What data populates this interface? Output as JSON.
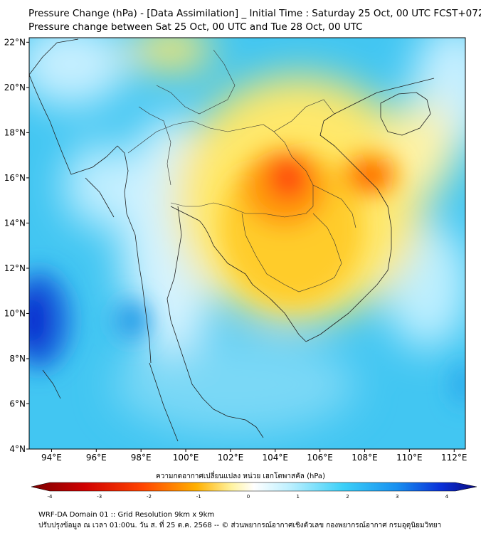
{
  "header": {
    "title": "Pressure Change (hPa) - [Data Assimilation] _ Initial Time : Saturday 25 Oct, 00 UTC FCST+072",
    "subtitle": "Pressure change between Sat 25 Oct, 00 UTC and Tue 28 Oct, 00 UTC"
  },
  "map": {
    "lon_range": [
      93,
      112.5
    ],
    "lat_range": [
      4,
      22.2
    ],
    "lon_ticks": [
      {
        "value": 94,
        "label": "94°E"
      },
      {
        "value": 96,
        "label": "96°E"
      },
      {
        "value": 98,
        "label": "98°E"
      },
      {
        "value": 100,
        "label": "100°E"
      },
      {
        "value": 102,
        "label": "102°E"
      },
      {
        "value": 104,
        "label": "104°E"
      },
      {
        "value": 106,
        "label": "106°E"
      },
      {
        "value": 108,
        "label": "108°E"
      },
      {
        "value": 110,
        "label": "110°E"
      },
      {
        "value": 112,
        "label": "112°E"
      }
    ],
    "lat_ticks": [
      {
        "value": 4,
        "label": "4°N"
      },
      {
        "value": 6,
        "label": "6°N"
      },
      {
        "value": 8,
        "label": "8°N"
      },
      {
        "value": 10,
        "label": "10°N"
      },
      {
        "value": 12,
        "label": "12°N"
      },
      {
        "value": 14,
        "label": "14°N"
      },
      {
        "value": 16,
        "label": "16°N"
      },
      {
        "value": 18,
        "label": "18°N"
      },
      {
        "value": 20,
        "label": "20°N"
      },
      {
        "value": 22,
        "label": "22°N"
      }
    ]
  },
  "colorbar": {
    "label": "ความกดอากาศเปลี่ยนแปลง หน่วย เฮกโตพาสคัล (hPa)",
    "range": [
      -4,
      4
    ],
    "ticks": [
      "-4",
      "-3",
      "-2",
      "-1",
      "0",
      "1",
      "2",
      "3",
      "4"
    ],
    "colors": [
      "#7a0000",
      "#e01010",
      "#ff6a00",
      "#ffc800",
      "#ffffff",
      "#9be4ff",
      "#22c0f0",
      "#0a3ce0",
      "#0a0a80"
    ]
  },
  "footer": {
    "line1": "WRF-DA Domain 01 :: Grid Resolution 9km x 9km",
    "line2": "ปรับปรุงข้อมูล ณ เวลา 01:00น. วัน ส. ที่ 25 ต.ค. 2568 -- © ส่วนพยากรณ์อากาศเชิงตัวเลข กองพยากรณ์อากาศ กรมอุตุนิยมวิทยา"
  }
}
